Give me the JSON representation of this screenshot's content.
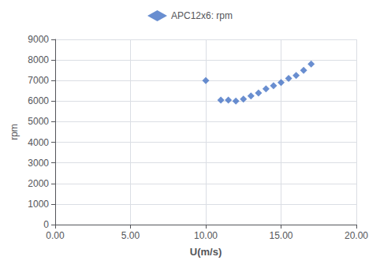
{
  "chart_data": {
    "type": "scatter",
    "x": [
      10.0,
      11.0,
      11.5,
      12.0,
      12.5,
      13.0,
      13.5,
      14.0,
      14.5,
      15.0,
      15.5,
      16.0,
      16.5,
      17.0
    ],
    "series": [
      {
        "name": "APC12x6: rpm",
        "color": "#4472C4",
        "marker": "diamond",
        "values": [
          7000,
          6050,
          6050,
          6000,
          6100,
          6250,
          6400,
          6600,
          6750,
          6900,
          7100,
          7250,
          7500,
          7800
        ]
      }
    ],
    "xlabel": "U(m/s)",
    "ylabel": "rpm",
    "xlim": [
      0.0,
      20.0
    ],
    "xticks": [
      {
        "value": 0,
        "label": "0.00"
      },
      {
        "value": 5,
        "label": "5.00"
      },
      {
        "value": 10,
        "label": "10.00"
      },
      {
        "value": 15,
        "label": "15.00"
      },
      {
        "value": 20,
        "label": "20.00"
      }
    ],
    "ylim": [
      0,
      9000
    ],
    "yticks": [
      0,
      1000,
      2000,
      3000,
      4000,
      5000,
      6000,
      7000,
      8000,
      9000
    ],
    "grid": true,
    "legend": "top"
  }
}
